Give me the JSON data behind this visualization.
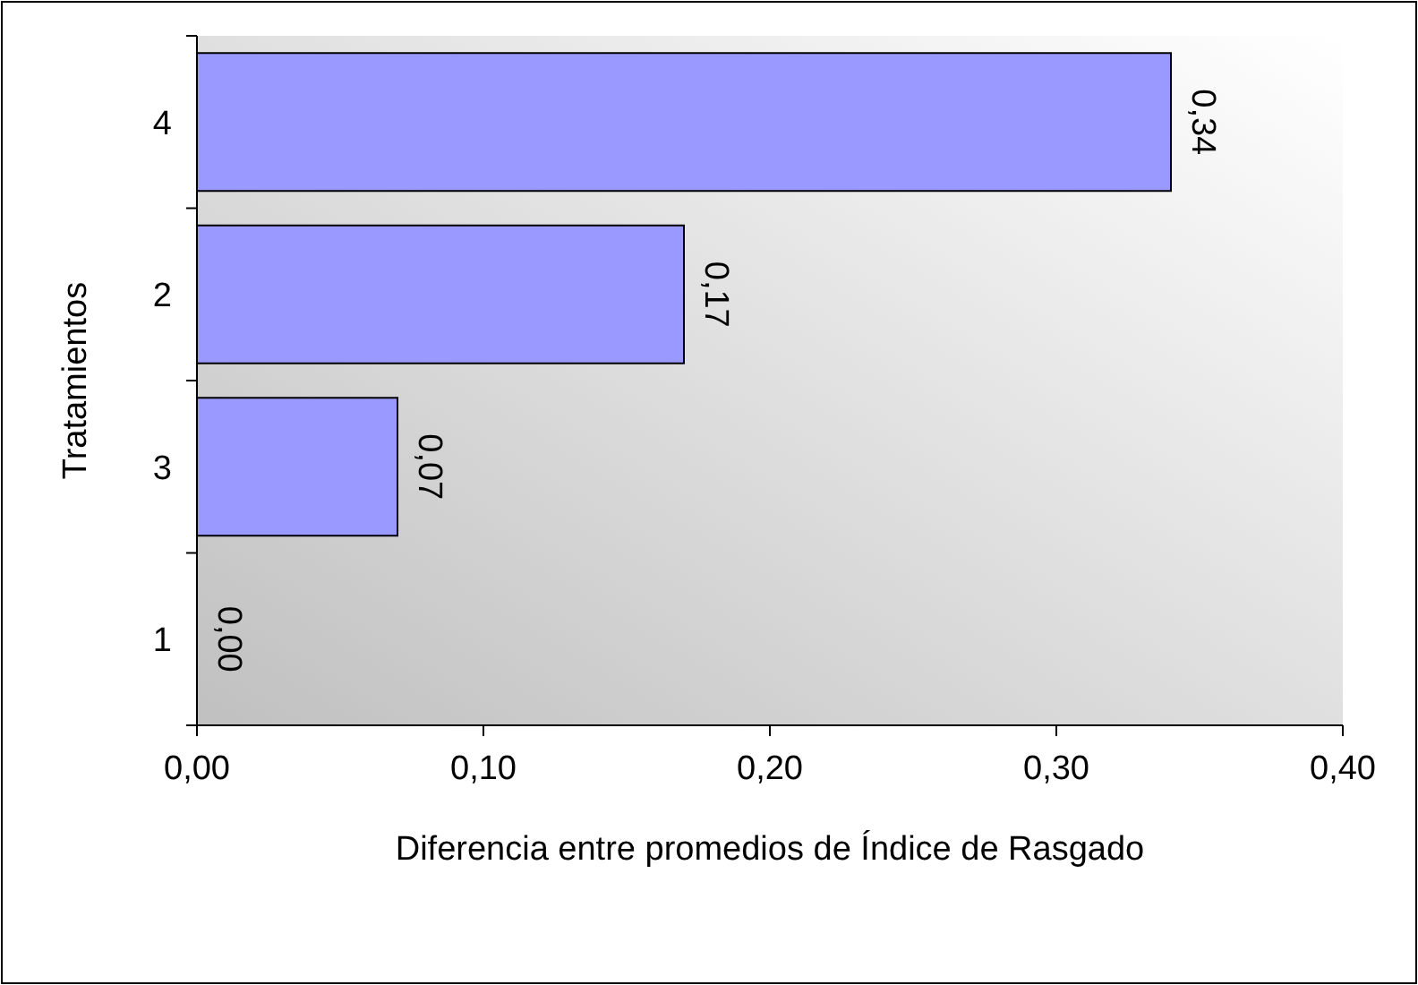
{
  "chart_data": {
    "type": "bar",
    "orientation": "horizontal",
    "xlabel": "Diferencia entre promedios de Índice de Rasgado",
    "ylabel": "Tratamientos",
    "categories": [
      "4",
      "2",
      "3",
      "1"
    ],
    "values": [
      0.34,
      0.17,
      0.07,
      0.0
    ],
    "value_labels": [
      "0,34",
      "0,17",
      "0,07",
      "0,00"
    ],
    "color": "#9999ff",
    "xlim": [
      0,
      0.4
    ],
    "xticks": [
      {
        "value": 0,
        "label": "0,00"
      },
      {
        "value": 0.1,
        "label": "0,10"
      },
      {
        "value": 0.2,
        "label": "0,20"
      },
      {
        "value": 0.3,
        "label": "0,30"
      },
      {
        "value": 0.4,
        "label": "0,40"
      }
    ],
    "grid": false
  }
}
